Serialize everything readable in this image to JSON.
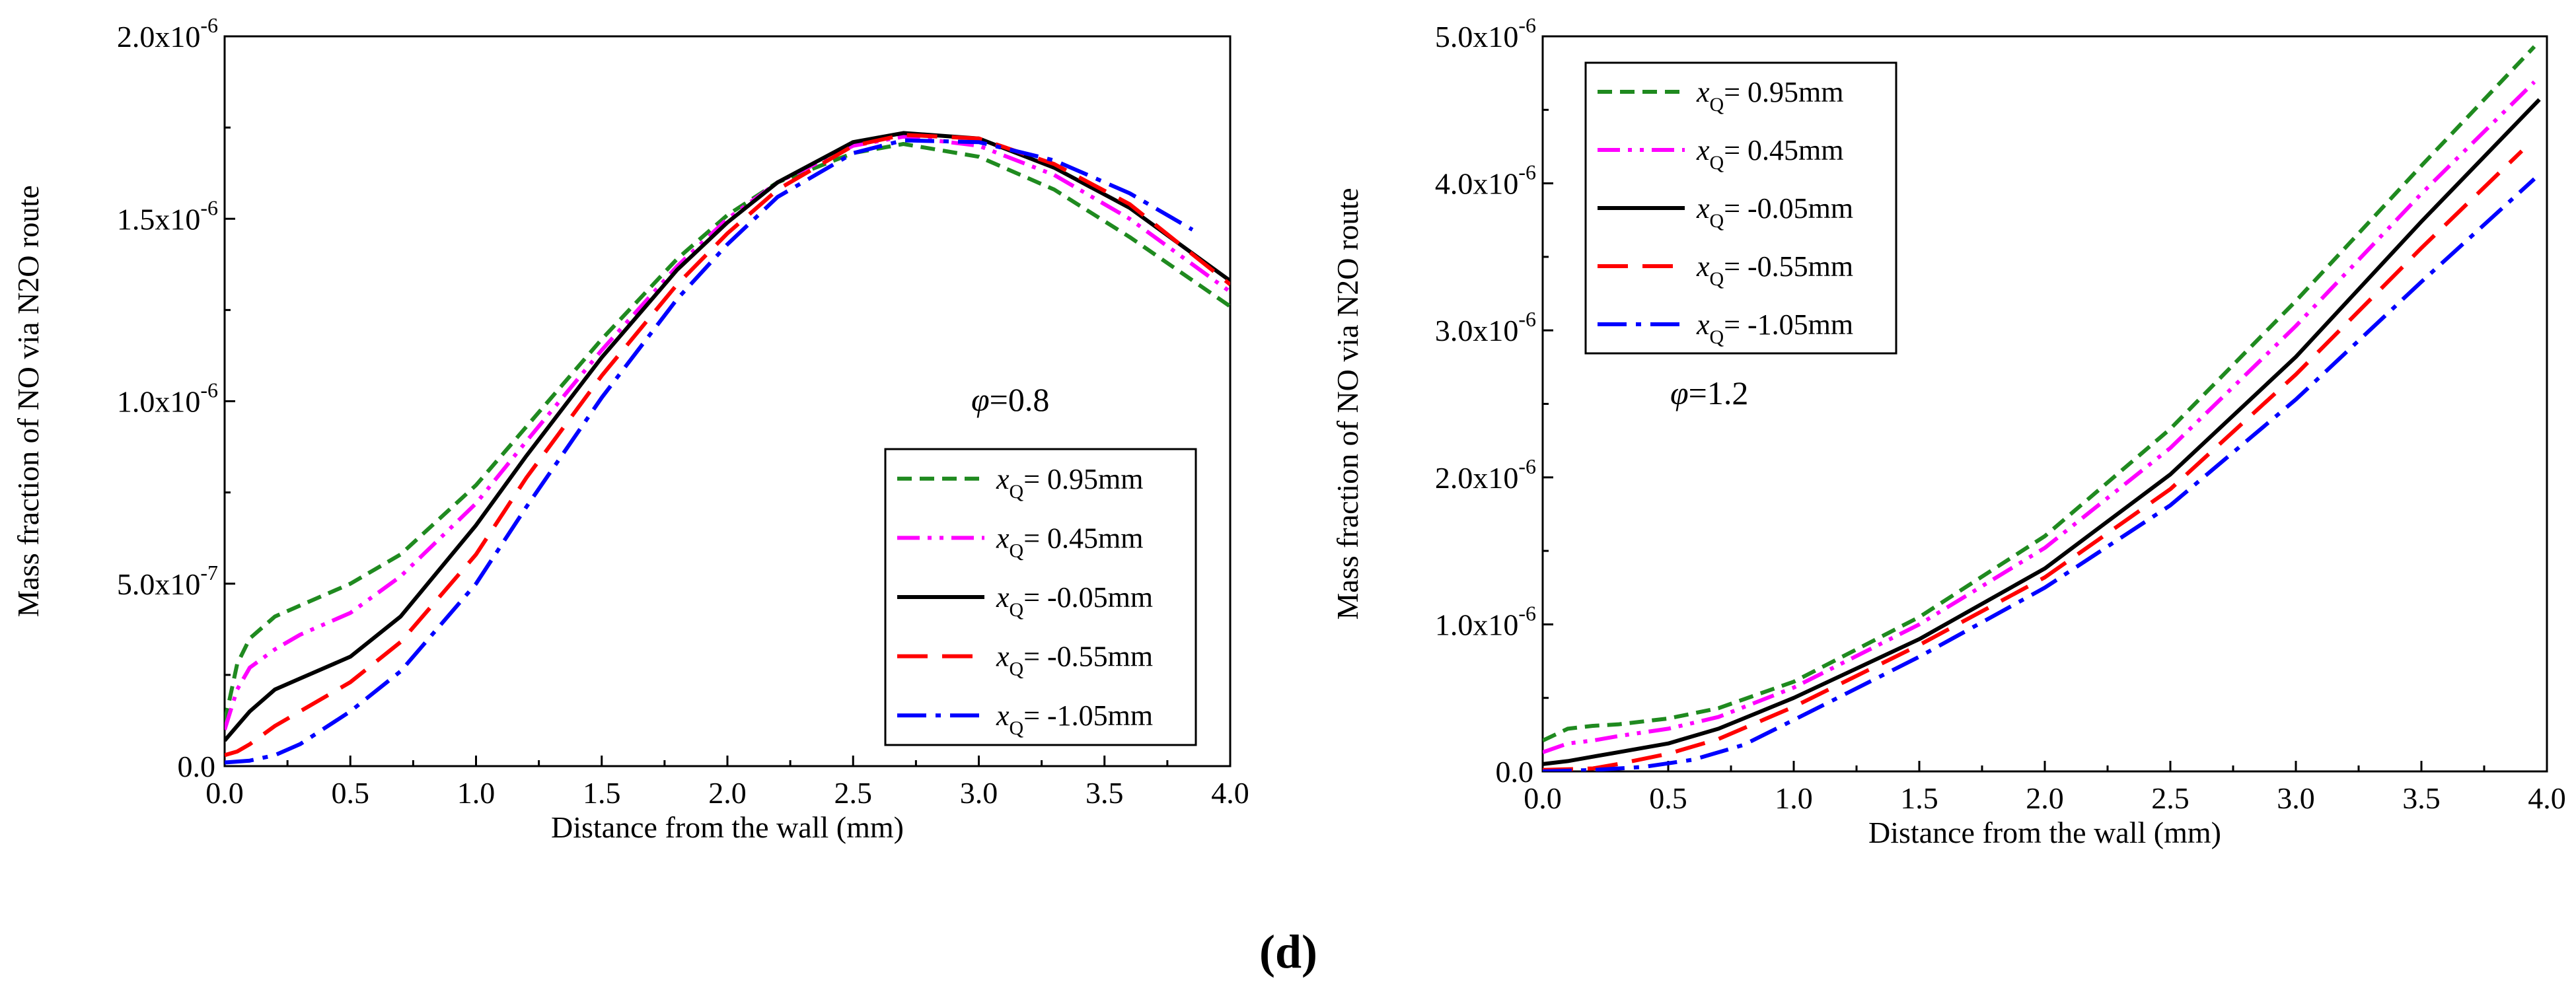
{
  "figure_label": "(d)",
  "colors": {
    "0.95": "#1f8a1f",
    "0.45": "#ff00ff",
    "-0.05": "#000000",
    "-0.55": "#ff0000",
    "-1.05": "#0000ff"
  },
  "chart_data": [
    {
      "type": "line",
      "phi_symbol": "φ",
      "phi_text": "=0.8",
      "xlabel": "Distance from the wall (mm)",
      "ylabel": "Mass fraction of NO via N2O route",
      "xlim": [
        0,
        4
      ],
      "ylim": [
        0,
        2e-06
      ],
      "xticks": [
        "0.0",
        "0.5",
        "1.0",
        "1.5",
        "2.0",
        "2.5",
        "3.0",
        "3.5",
        "4.0"
      ],
      "yticks": [
        {
          "mant": "0.0",
          "exp": ""
        },
        {
          "mant": "5.0x10",
          "exp": "-7"
        },
        {
          "mant": "1.0x10",
          "exp": "-6"
        },
        {
          "mant": "1.5x10",
          "exp": "-6"
        },
        {
          "mant": "2.0x10",
          "exp": "-6"
        }
      ],
      "legend_position": "bottom-right",
      "series": [
        {
          "name": "x",
          "sub": "Q",
          "value": "= 0.95mm",
          "key": "0.95",
          "dash": "short-dash",
          "x": [
            0.0,
            0.05,
            0.1,
            0.2,
            0.3,
            0.5,
            0.7,
            1.0,
            1.2,
            1.5,
            1.8,
            2.0,
            2.2,
            2.5,
            2.7,
            3.0,
            3.3,
            3.6,
            4.0
          ],
          "y": [
            1.2e-07,
            2.8e-07,
            3.5e-07,
            4.1e-07,
            4.4e-07,
            5e-07,
            5.8e-07,
            7.7e-07,
            9.3e-07,
            1.17e-06,
            1.39e-06,
            1.51e-06,
            1.6e-06,
            1.68e-06,
            1.705e-06,
            1.67e-06,
            1.58e-06,
            1.45e-06,
            1.26e-06
          ]
        },
        {
          "name": "x",
          "sub": "Q",
          "value": "= 0.45mm",
          "key": "0.45",
          "dash": "dash-dot-dot",
          "x": [
            0.0,
            0.05,
            0.1,
            0.2,
            0.3,
            0.5,
            0.7,
            1.0,
            1.2,
            1.5,
            1.8,
            2.0,
            2.2,
            2.5,
            2.7,
            3.0,
            3.3,
            3.6,
            4.0
          ],
          "y": [
            1e-07,
            2.1e-07,
            2.7e-07,
            3.2e-07,
            3.6e-07,
            4.2e-07,
            5.2e-07,
            7.2e-07,
            8.9e-07,
            1.14e-06,
            1.37e-06,
            1.5e-06,
            1.6e-06,
            1.7e-06,
            1.725e-06,
            1.7e-06,
            1.62e-06,
            1.5e-06,
            1.3e-06
          ]
        },
        {
          "name": "x",
          "sub": "Q",
          "value": "= -0.05mm",
          "key": "-0.05",
          "dash": "solid",
          "x": [
            0.0,
            0.05,
            0.1,
            0.2,
            0.3,
            0.5,
            0.7,
            1.0,
            1.2,
            1.5,
            1.8,
            2.0,
            2.2,
            2.5,
            2.7,
            3.0,
            3.3,
            3.6,
            4.0
          ],
          "y": [
            7e-08,
            1.1e-07,
            1.5e-07,
            2.1e-07,
            2.4e-07,
            3e-07,
            4.1e-07,
            6.6e-07,
            8.5e-07,
            1.12e-06,
            1.36e-06,
            1.49e-06,
            1.6e-06,
            1.71e-06,
            1.735e-06,
            1.72e-06,
            1.64e-06,
            1.53e-06,
            1.33e-06
          ]
        },
        {
          "name": "x",
          "sub": "Q",
          "value": "= -0.55mm",
          "key": "-0.55",
          "dash": "long-dash",
          "x": [
            0.0,
            0.05,
            0.1,
            0.2,
            0.3,
            0.5,
            0.7,
            1.0,
            1.2,
            1.5,
            1.8,
            2.0,
            2.2,
            2.5,
            2.7,
            3.0,
            3.3,
            3.6,
            4.0
          ],
          "y": [
            3e-08,
            4e-08,
            6e-08,
            1.1e-07,
            1.5e-07,
            2.3e-07,
            3.4e-07,
            5.8e-07,
            7.9e-07,
            1.07e-06,
            1.32e-06,
            1.46e-06,
            1.58e-06,
            1.7e-06,
            1.73e-06,
            1.72e-06,
            1.65e-06,
            1.54e-06,
            1.32e-06
          ]
        },
        {
          "name": "x",
          "sub": "Q",
          "value": "= -1.05mm",
          "key": "-1.05",
          "dash": "dash-dot",
          "x": [
            0.0,
            0.1,
            0.2,
            0.3,
            0.5,
            0.7,
            1.0,
            1.2,
            1.5,
            1.8,
            2.0,
            2.2,
            2.5,
            2.7,
            3.0,
            3.3,
            3.6,
            3.85
          ],
          "y": [
            1e-08,
            1.5e-08,
            3e-08,
            6e-08,
            1.5e-07,
            2.6e-07,
            5e-07,
            7.1e-07,
            1.01e-06,
            1.28e-06,
            1.43e-06,
            1.56e-06,
            1.68e-06,
            1.715e-06,
            1.71e-06,
            1.66e-06,
            1.57e-06,
            1.47e-06
          ]
        }
      ]
    },
    {
      "type": "line",
      "phi_symbol": "φ",
      "phi_text": "=1.2",
      "xlabel": "Distance from the wall (mm)",
      "ylabel": "Mass fraction of NO via N2O route",
      "xlim": [
        0,
        4
      ],
      "ylim": [
        0,
        5e-06
      ],
      "xticks": [
        "0.0",
        "0.5",
        "1.0",
        "1.5",
        "2.0",
        "2.5",
        "3.0",
        "3.5",
        "4.0"
      ],
      "yticks": [
        {
          "mant": "0.0",
          "exp": ""
        },
        {
          "mant": "1.0x10",
          "exp": "-6"
        },
        {
          "mant": "2.0x10",
          "exp": "-6"
        },
        {
          "mant": "3.0x10",
          "exp": "-6"
        },
        {
          "mant": "4.0x10",
          "exp": "-6"
        },
        {
          "mant": "5.0x10",
          "exp": "-6"
        }
      ],
      "legend_position": "top-left",
      "series": [
        {
          "name": "x",
          "sub": "Q",
          "value": "= 0.95mm",
          "key": "0.95",
          "dash": "short-dash",
          "x": [
            0.0,
            0.1,
            0.2,
            0.3,
            0.5,
            0.7,
            1.0,
            1.5,
            2.0,
            2.5,
            3.0,
            3.5,
            3.95
          ],
          "y": [
            2.1e-07,
            2.9e-07,
            3.1e-07,
            3.2e-07,
            3.6e-07,
            4.3e-07,
            6.1e-07,
            1.05e-06,
            1.6e-06,
            2.33e-06,
            3.2e-06,
            4.12e-06,
            4.93e-06
          ]
        },
        {
          "name": "x",
          "sub": "Q",
          "value": "= 0.45mm",
          "key": "0.45",
          "dash": "dash-dot-dot",
          "x": [
            0.0,
            0.1,
            0.2,
            0.3,
            0.5,
            0.7,
            1.0,
            1.5,
            2.0,
            2.5,
            3.0,
            3.5,
            3.95
          ],
          "y": [
            1.3e-07,
            1.9e-07,
            2.1e-07,
            2.4e-07,
            2.9e-07,
            3.7e-07,
            5.7e-07,
            1e-06,
            1.52e-06,
            2.2e-06,
            3.03e-06,
            3.93e-06,
            4.69e-06
          ]
        },
        {
          "name": "x",
          "sub": "Q",
          "value": "= -0.05mm",
          "key": "-0.05",
          "dash": "solid",
          "x": [
            0.0,
            0.1,
            0.2,
            0.3,
            0.5,
            0.7,
            1.0,
            1.5,
            2.0,
            2.5,
            3.0,
            3.5,
            3.97
          ],
          "y": [
            5e-08,
            7e-08,
            1e-07,
            1.3e-07,
            1.9e-07,
            2.9e-07,
            5e-07,
            9e-07,
            1.38e-06,
            2.02e-06,
            2.82e-06,
            3.74e-06,
            4.57e-06
          ]
        },
        {
          "name": "x",
          "sub": "Q",
          "value": "= -0.55mm",
          "key": "-0.55",
          "dash": "long-dash",
          "x": [
            0.0,
            0.1,
            0.2,
            0.3,
            0.5,
            0.7,
            1.0,
            1.5,
            2.0,
            2.5,
            3.0,
            3.5,
            3.9
          ],
          "y": [
            1e-08,
            1.5e-08,
            2e-08,
            5e-08,
            1.2e-07,
            2.2e-07,
            4.4e-07,
            8.6e-07,
            1.32e-06,
            1.92e-06,
            2.7e-06,
            3.56e-06,
            4.22e-06
          ]
        },
        {
          "name": "x",
          "sub": "Q",
          "value": "= -1.05mm",
          "key": "-1.05",
          "dash": "dash-dot",
          "x": [
            0.0,
            0.2,
            0.4,
            0.6,
            0.8,
            1.0,
            1.5,
            2.0,
            2.5,
            3.0,
            3.5,
            3.95
          ],
          "y": [
            0.0,
            1e-08,
            3e-08,
            8e-08,
            1.8e-07,
            3.5e-07,
            7.8e-07,
            1.25e-06,
            1.81e-06,
            2.53e-06,
            3.33e-06,
            4.03e-06
          ]
        }
      ]
    }
  ]
}
